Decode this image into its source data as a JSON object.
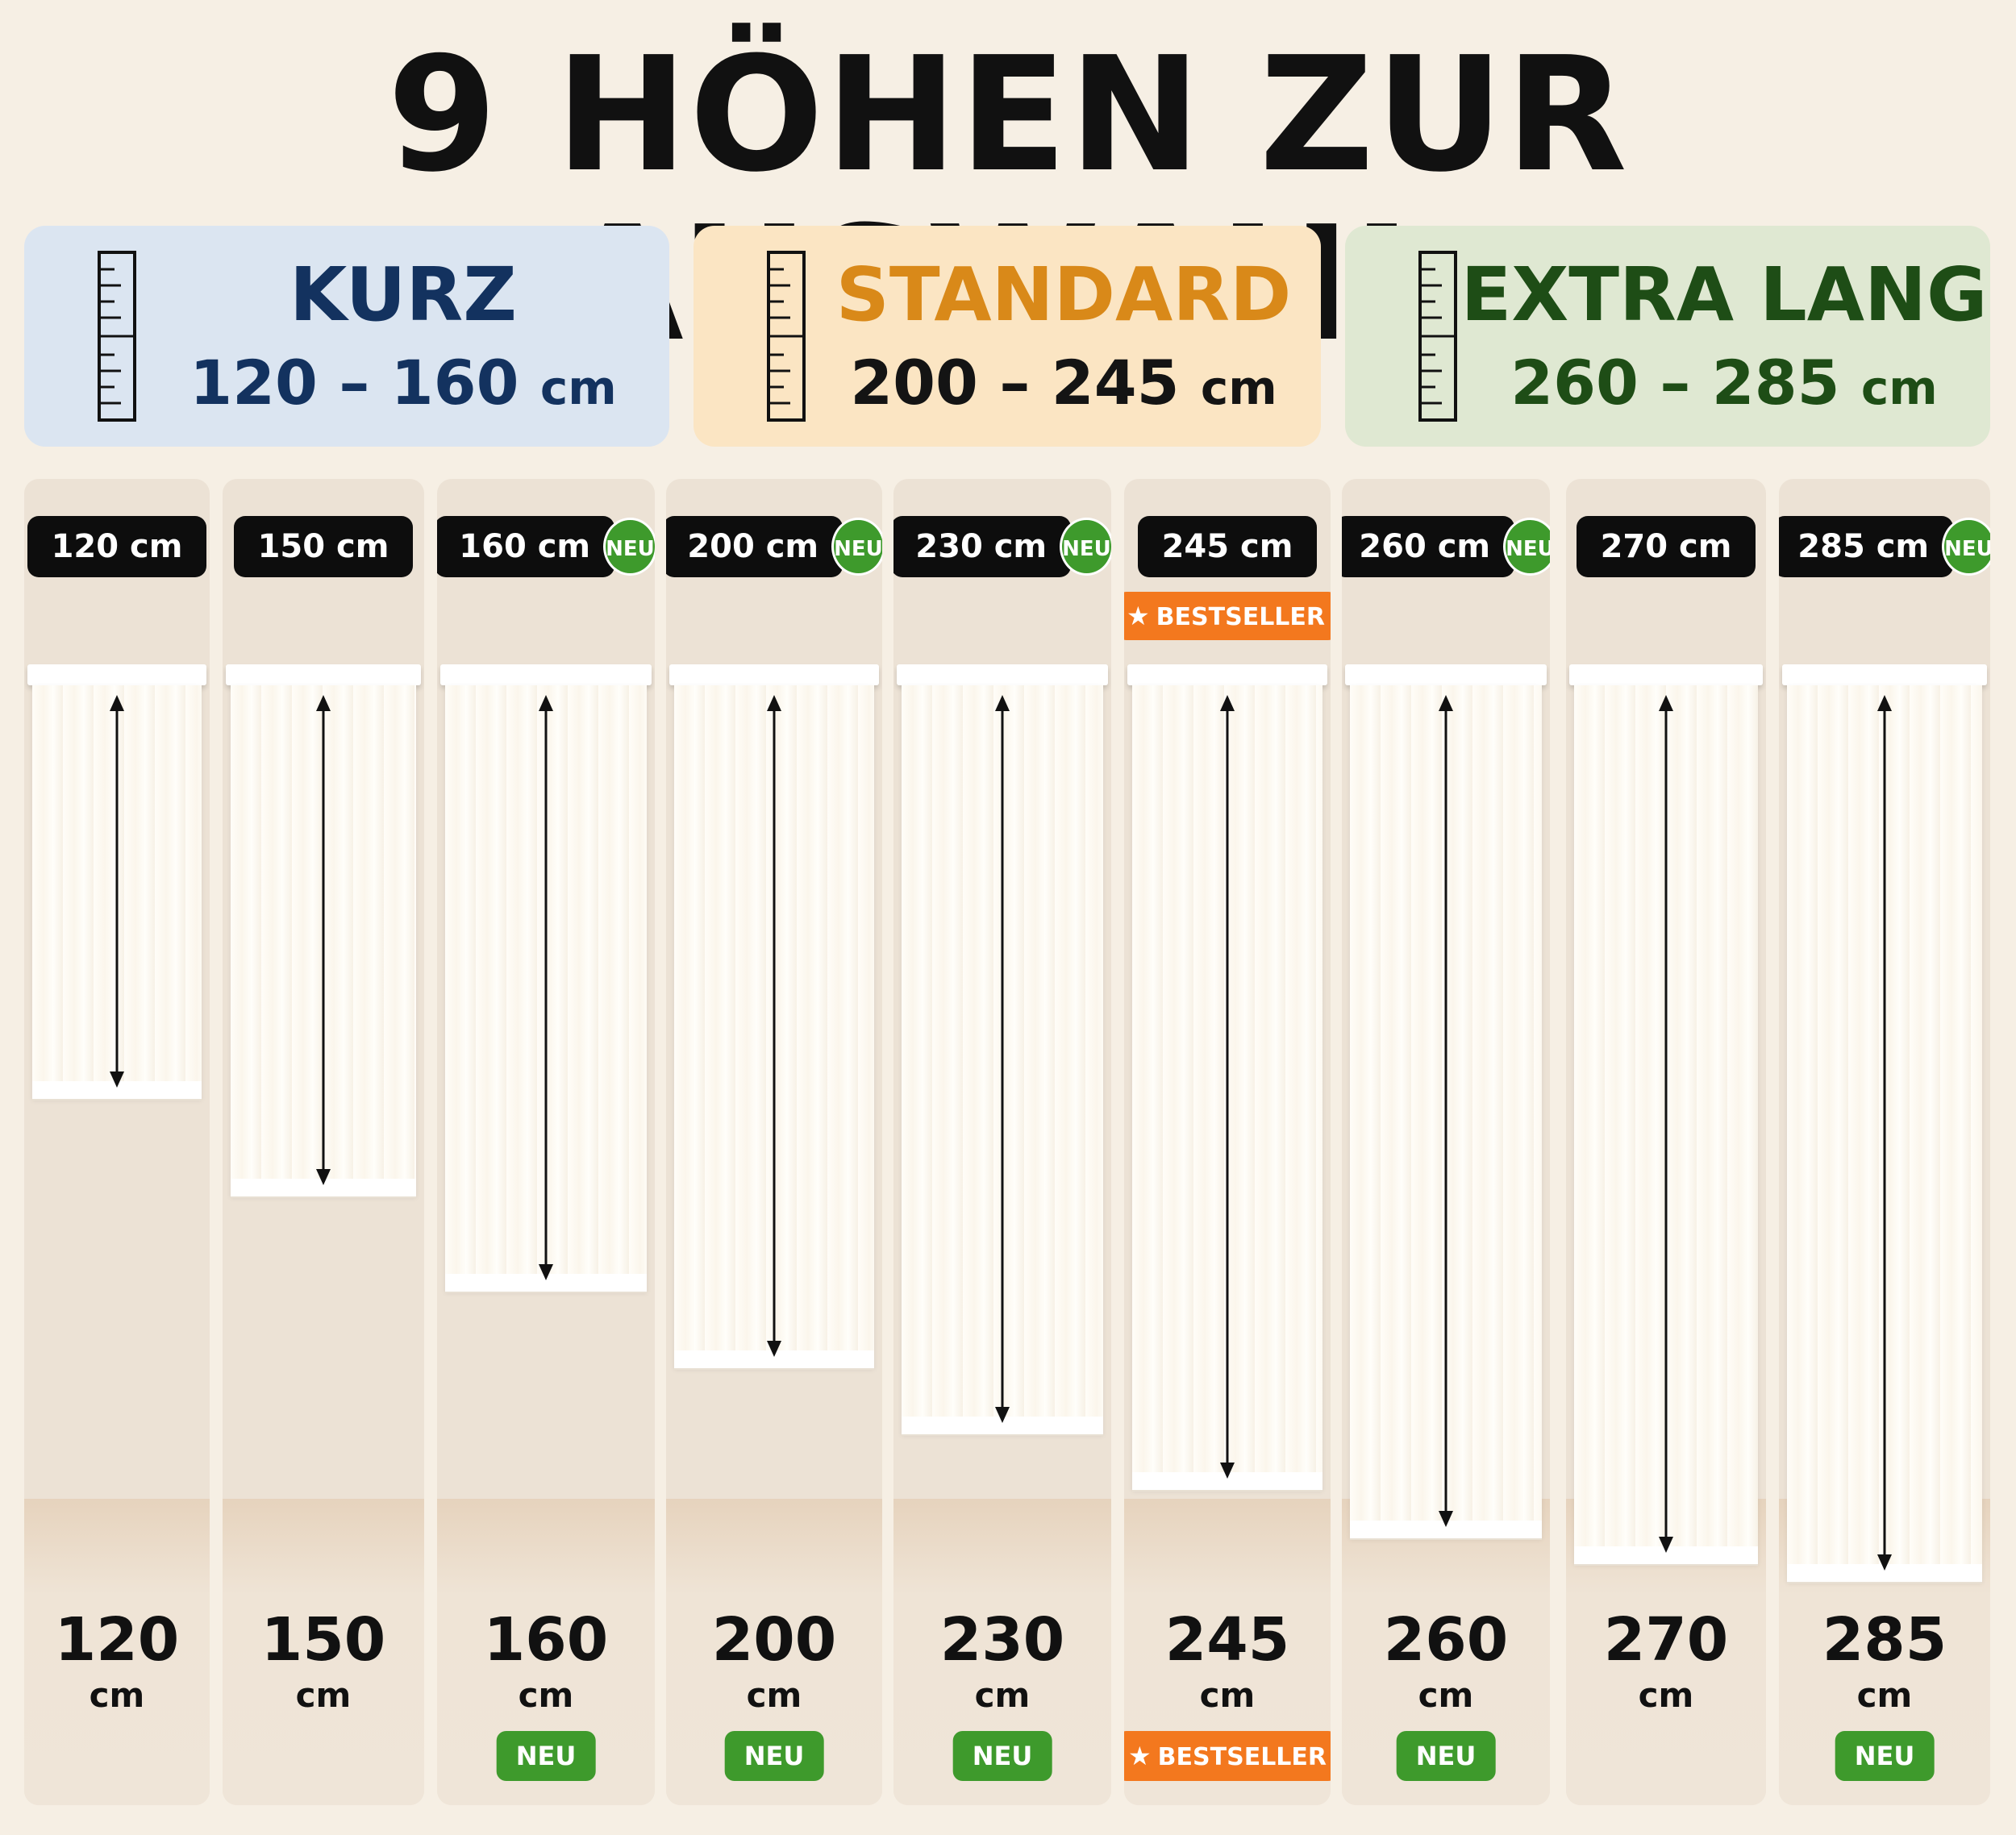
{
  "title": "9 HÖHEN ZUR AUSWAHL",
  "categories": [
    {
      "name": "KURZ",
      "range": "120 – 160",
      "unit": "cm",
      "color": "#13325f",
      "bg": "#dbe5f1",
      "icon": "ruler-icon"
    },
    {
      "name": "STANDARD",
      "range": "200 – 245",
      "unit": "cm",
      "color": "#d98919",
      "bg": "#fbe5c3",
      "icon": "ruler-icon"
    },
    {
      "name": "EXTRA LANG",
      "range": "260 – 285",
      "unit": "cm",
      "color": "#1e4d16",
      "bg": "#dfe8d2",
      "icon": "ruler-icon"
    }
  ],
  "heights": [
    {
      "label": "120 cm",
      "value": "120",
      "unit": "cm",
      "neu_circle": "",
      "top_badge": "",
      "bottom_badge": ""
    },
    {
      "label": "150 cm",
      "value": "150",
      "unit": "cm",
      "neu_circle": "",
      "top_badge": "",
      "bottom_badge": ""
    },
    {
      "label": "160 cm",
      "value": "160",
      "unit": "cm",
      "neu_circle": "NEU",
      "top_badge": "",
      "bottom_badge": "NEU"
    },
    {
      "label": "200 cm",
      "value": "200",
      "unit": "cm",
      "neu_circle": "NEU",
      "top_badge": "",
      "bottom_badge": "NEU"
    },
    {
      "label": "230 cm",
      "value": "230",
      "unit": "cm",
      "neu_circle": "NEU",
      "top_badge": "",
      "bottom_badge": "NEU"
    },
    {
      "label": "245 cm",
      "value": "245",
      "unit": "cm",
      "neu_circle": "",
      "top_badge": "BESTSELLER",
      "bottom_badge": "BESTSELLER"
    },
    {
      "label": "260 cm",
      "value": "260",
      "unit": "cm",
      "neu_circle": "NEU",
      "top_badge": "",
      "bottom_badge": "NEU"
    },
    {
      "label": "270 cm",
      "value": "270",
      "unit": "cm",
      "neu_circle": "",
      "top_badge": "",
      "bottom_badge": ""
    },
    {
      "label": "285 cm",
      "value": "285",
      "unit": "cm",
      "neu_circle": "NEU",
      "top_badge": "",
      "bottom_badge": "NEU"
    }
  ],
  "colors": {
    "neu": "#3e9a2c",
    "bestseller": "#f3781e",
    "pill": "#0d0d0d"
  }
}
